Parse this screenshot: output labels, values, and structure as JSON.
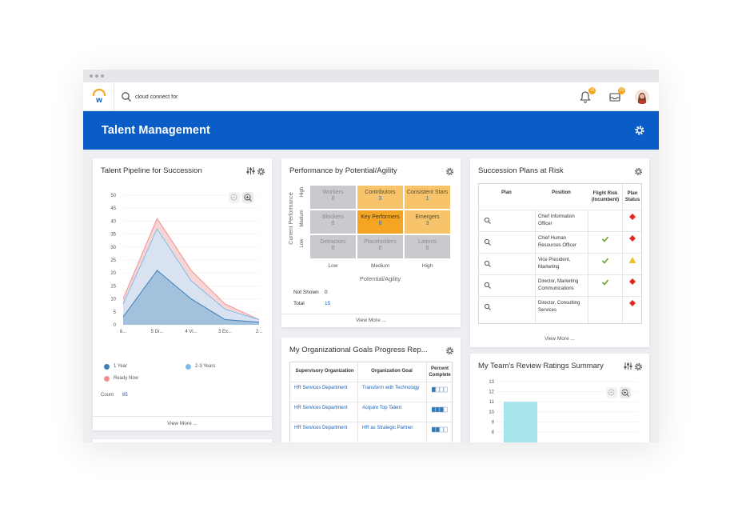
{
  "search": {
    "value": "cloud connect for"
  },
  "notifications": {
    "bell_count": "15",
    "inbox_count": "21"
  },
  "header": {
    "title": "Talent Management"
  },
  "pipeline_card": {
    "title": "Talent Pipeline for Succession",
    "legend": [
      {
        "label": "1 Year",
        "color": "#3e7fb8"
      },
      {
        "label": "2-3 Years",
        "color": "#7fbde8"
      },
      {
        "label": "Ready Now",
        "color": "#f08f8f"
      }
    ],
    "count_label": "Count",
    "count_value": "85",
    "view_more": "View More ..."
  },
  "chart_data": {
    "type": "area",
    "title": "Talent Pipeline for Succession",
    "categories": [
      "6...",
      "5 Di...",
      "4 Vi...",
      "3 Ex...",
      "2..."
    ],
    "ylim": [
      0,
      50
    ],
    "yticks": [
      "50",
      "45",
      "40",
      "35",
      "30",
      "25",
      "20",
      "15",
      "10",
      "5",
      "0"
    ],
    "grid": true,
    "series": [
      {
        "name": "Ready Now",
        "color": "#f08f8f",
        "values": [
          10,
          41,
          21,
          8,
          2
        ]
      },
      {
        "name": "2-3 Years",
        "color": "#7fbde8",
        "values": [
          8,
          37,
          17,
          6,
          2
        ]
      },
      {
        "name": "1 Year",
        "color": "#3e7fb8",
        "values": [
          3,
          21,
          10,
          2,
          1
        ]
      }
    ]
  },
  "performance_card": {
    "title": "Performance by Potential/Agility",
    "y_axis_label": "Current Performance",
    "x_axis_label": "Potential/Agility",
    "row_labels": [
      "High",
      "Medium",
      "Low"
    ],
    "col_labels": [
      "Low",
      "Medium",
      "High"
    ],
    "cells": [
      {
        "name": "Workers",
        "value": "0",
        "style": "gray"
      },
      {
        "name": "Contributors",
        "value": "3",
        "style": "yel"
      },
      {
        "name": "Consistent Stars",
        "value": "1",
        "style": "yel"
      },
      {
        "name": "Blockers",
        "value": "0",
        "style": "gray"
      },
      {
        "name": "Key Performers",
        "value": "8",
        "style": "org"
      },
      {
        "name": "Emergers",
        "value": "3",
        "style": "yel"
      },
      {
        "name": "Detractors",
        "value": "0",
        "style": "gray"
      },
      {
        "name": "Placeholders",
        "value": "0",
        "style": "gray"
      },
      {
        "name": "Latents",
        "value": "0",
        "style": "gray"
      }
    ],
    "not_shown_label": "Not Shown",
    "not_shown_value": "0",
    "total_label": "Total",
    "total_value": "15",
    "view_more": "View More ..."
  },
  "goals_card": {
    "title": "My Organizational Goals Progress Rep...",
    "headers": [
      "Supervisory Organization",
      "Organization Goal",
      "Percent Complete"
    ],
    "rows": [
      {
        "org": "HR Services Department",
        "goal": "Transform with Technology",
        "percent": 0.25
      },
      {
        "org": "HR Services Department",
        "goal": "Acquire Top Talent",
        "percent": 0.75
      },
      {
        "org": "HR Services Department",
        "goal": "HR as Strategic Partner",
        "percent": 0.5
      }
    ]
  },
  "succession_card": {
    "title": "Succession Plans at Risk",
    "headers": [
      "Plan",
      "Position",
      "Flight Risk (Incumbent)",
      "Plan Status"
    ],
    "rows": [
      {
        "position": "Chief Information Officer",
        "flight_risk": "",
        "status": "red-diamond"
      },
      {
        "position": "Chief Human Resources Officer",
        "flight_risk": "check",
        "status": "red-diamond"
      },
      {
        "position": "Vice President, Marketing",
        "flight_risk": "check",
        "status": "yellow-triangle"
      },
      {
        "position": "Director, Marketing Communications",
        "flight_risk": "check",
        "status": "red-diamond"
      },
      {
        "position": "Director, Consulting Services",
        "flight_risk": "",
        "status": "red-diamond"
      }
    ],
    "view_more": "View More ..."
  },
  "review_card": {
    "title": "My Team's Review Ratings Summary",
    "yticks": [
      "13",
      "12",
      "11",
      "10",
      "9",
      "8"
    ],
    "bar_value": 11,
    "bar_color": "#a6e4ec"
  },
  "colors": {
    "brand_blue": "#0a5cc7",
    "link": "#1a62b9",
    "accent_orange": "#f5a623"
  }
}
